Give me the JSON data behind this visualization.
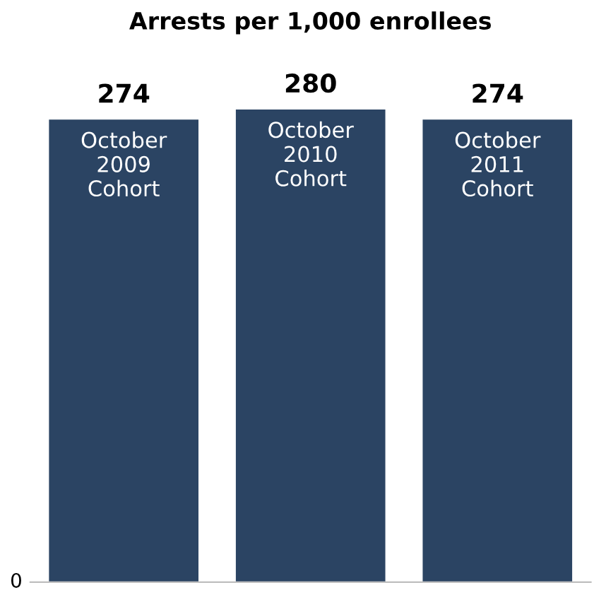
{
  "chart_data": {
    "type": "bar",
    "title": "Arrests per 1,000 enrollees",
    "categories": [
      "October\n2009\nCohort",
      "October\n2010\nCohort",
      "October\n2011\nCohort"
    ],
    "values": [
      274,
      280,
      274
    ],
    "color": "#2b4463",
    "annotations": [
      "0"
    ],
    "data_labels": true
  }
}
